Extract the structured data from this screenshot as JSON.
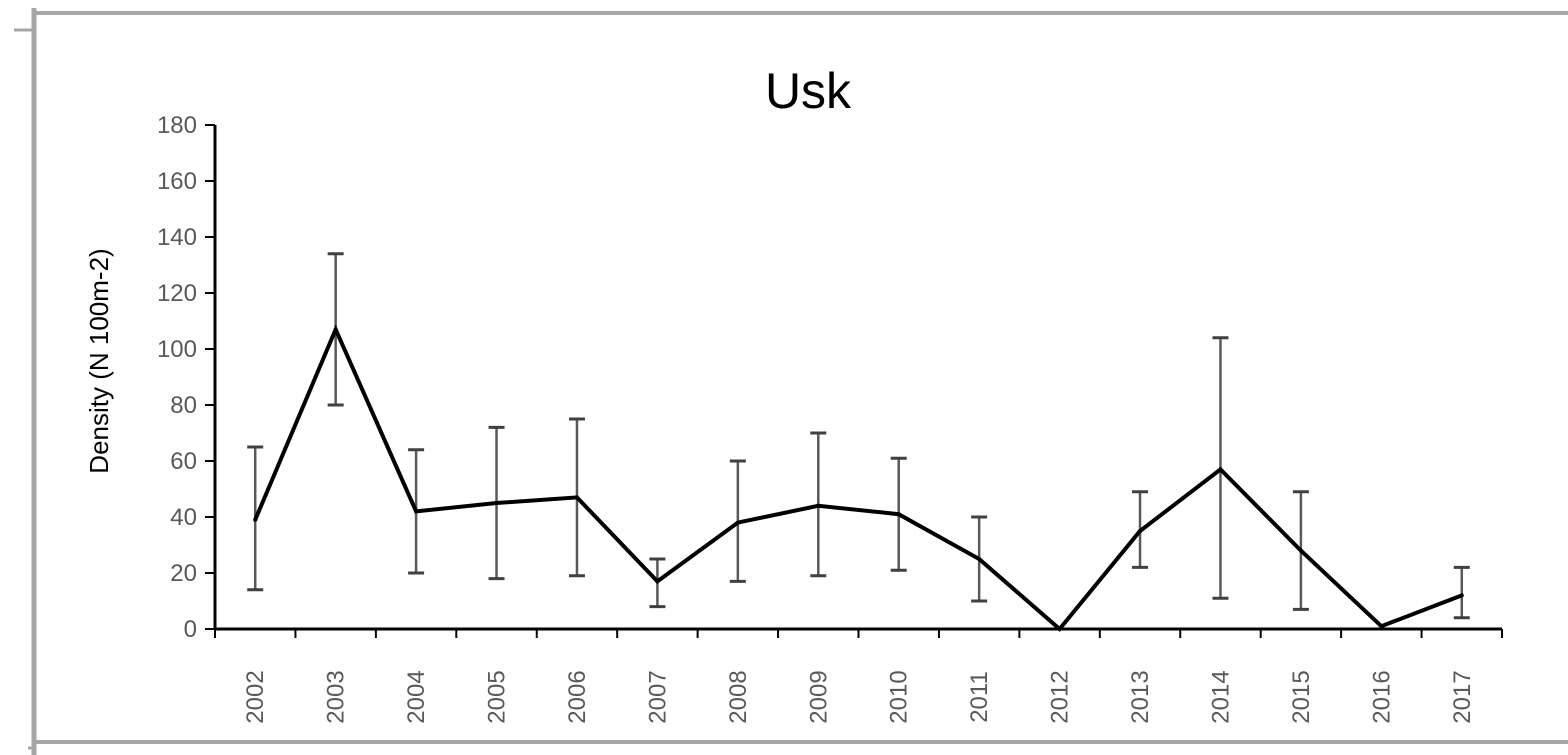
{
  "chart_data": {
    "type": "line",
    "title": "Usk",
    "xlabel": "",
    "ylabel": "Density (N 100m-2)",
    "ylim": [
      0,
      180
    ],
    "yticks": [
      0,
      20,
      40,
      60,
      80,
      100,
      120,
      140,
      160,
      180
    ],
    "grid": false,
    "legend": "none",
    "categories": [
      "2002",
      "2003",
      "2004",
      "2005",
      "2006",
      "2007",
      "2008",
      "2009",
      "2010",
      "2011",
      "2012",
      "2013",
      "2014",
      "2015",
      "2016",
      "2017"
    ],
    "series": [
      {
        "values": [
          39,
          107,
          42,
          45,
          47,
          17,
          38,
          44,
          41,
          25,
          0,
          35,
          57,
          28,
          1,
          12
        ],
        "err_low": [
          14,
          80,
          20,
          18,
          19,
          8,
          17,
          19,
          21,
          10,
          0,
          22,
          11,
          7,
          0,
          4
        ],
        "err_high": [
          65,
          134,
          64,
          72,
          75,
          25,
          60,
          70,
          61,
          40,
          0,
          49,
          104,
          49,
          0,
          22
        ],
        "color": "#000000"
      }
    ]
  }
}
